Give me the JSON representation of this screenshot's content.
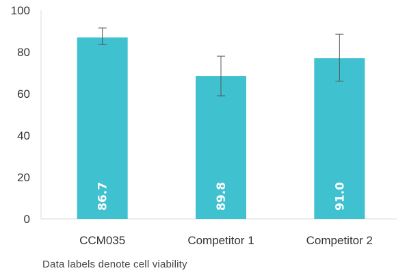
{
  "chart_data": {
    "type": "bar",
    "categories": [
      "CCM035",
      "Competitor 1",
      "Competitor 2"
    ],
    "values": [
      87,
      68.5,
      77
    ],
    "error_low": [
      83.5,
      59,
      66
    ],
    "error_high": [
      91.5,
      78,
      88.5
    ],
    "data_labels": [
      "86.7",
      "89.8",
      "91.0"
    ],
    "ylim": [
      0,
      100
    ],
    "yticks": [
      "0",
      "20",
      "40",
      "60",
      "80",
      "100"
    ],
    "bar_color": "#3fc1cf",
    "error_bar_color": "#555555",
    "grid": false,
    "title": "",
    "xlabel": "",
    "ylabel": ""
  },
  "footnote": "Data labels denote cell viability"
}
